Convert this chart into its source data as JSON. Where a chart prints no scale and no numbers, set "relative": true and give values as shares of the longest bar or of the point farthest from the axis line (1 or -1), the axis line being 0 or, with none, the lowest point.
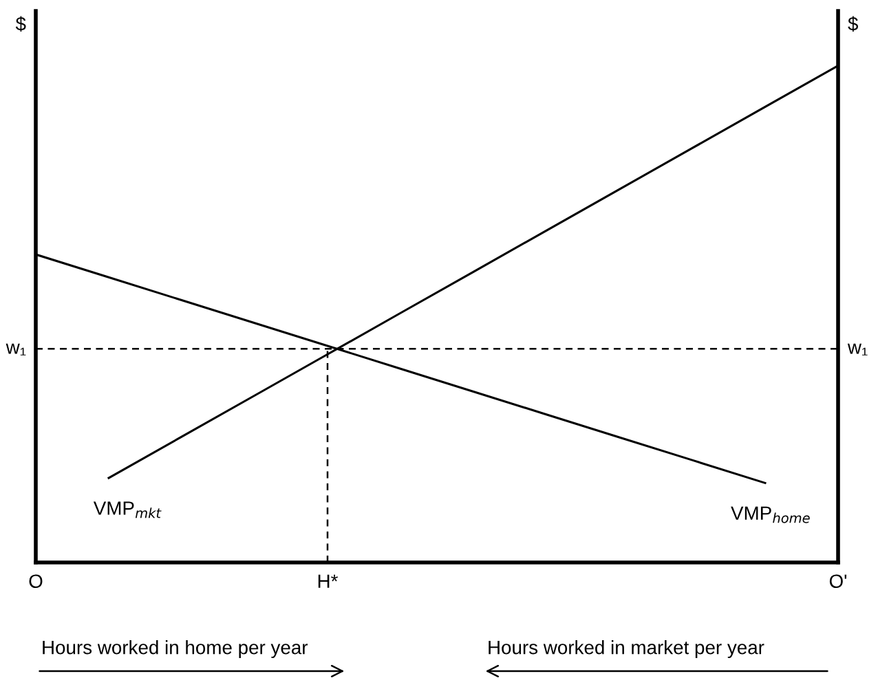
{
  "chart_data": {
    "type": "line",
    "relative": true,
    "ylabel": "$",
    "y2label": "$",
    "categories": [
      "O",
      null,
      null,
      null,
      "H*",
      null,
      null,
      null,
      null,
      null,
      null,
      "O'"
    ],
    "series": [
      {
        "name": "VMP$_{mkt}$",
        "color": "#000000",
        "values": [
          null,
          0.17,
          0.253,
          0.336,
          0.419,
          0.502,
          0.585,
          0.668,
          0.751,
          0.834,
          0.917,
          1
        ]
      },
      {
        "name": "VMP$_{home}$",
        "color": "#000000",
        "values": [
          0.62,
          0.574,
          0.528,
          0.482,
          0.436,
          0.39,
          0.344,
          0.298,
          0.252,
          0.206,
          0.16,
          null
        ]
      }
    ],
    "ref_lines": [
      {
        "axis": "y",
        "value": 0.43,
        "label": "w₁",
        "color": "#000000",
        "line_style": "dashed"
      },
      {
        "axis": "x",
        "value": "H*",
        "color": "#000000",
        "line_style": "dashed"
      }
    ],
    "annotations": [
      "Hours worked in home per year",
      "Hours worked in market per year"
    ],
    "grid": false,
    "legend": false,
    "marker": "none",
    "line_style": "solid"
  }
}
